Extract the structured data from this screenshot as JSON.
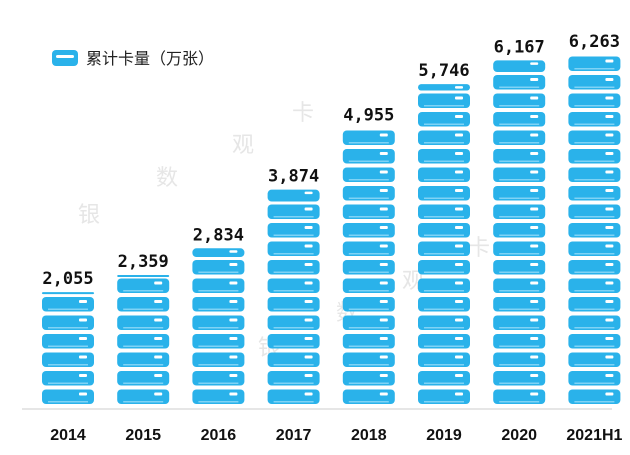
{
  "chart_data": {
    "type": "bar",
    "categories": [
      "2014",
      "2015",
      "2016",
      "2017",
      "2018",
      "2019",
      "2020",
      "2021H1"
    ],
    "values": [
      2055,
      2359,
      2834,
      3874,
      4955,
      5746,
      6167,
      6263
    ],
    "value_labels": [
      "2,055",
      "2,359",
      "2,834",
      "3,874",
      "4,955",
      "5,746",
      "6,167",
      "6,263"
    ],
    "legend": "累计卡量（万张）",
    "legend_position": "top-left",
    "watermark": [
      "银",
      "数",
      "观",
      "卡"
    ],
    "bar_style": "stacked-card-icons",
    "grid": false,
    "colors": {
      "bar": "#2ab2ea",
      "bar_light": "#7fd3f5",
      "text": "#111111"
    }
  }
}
